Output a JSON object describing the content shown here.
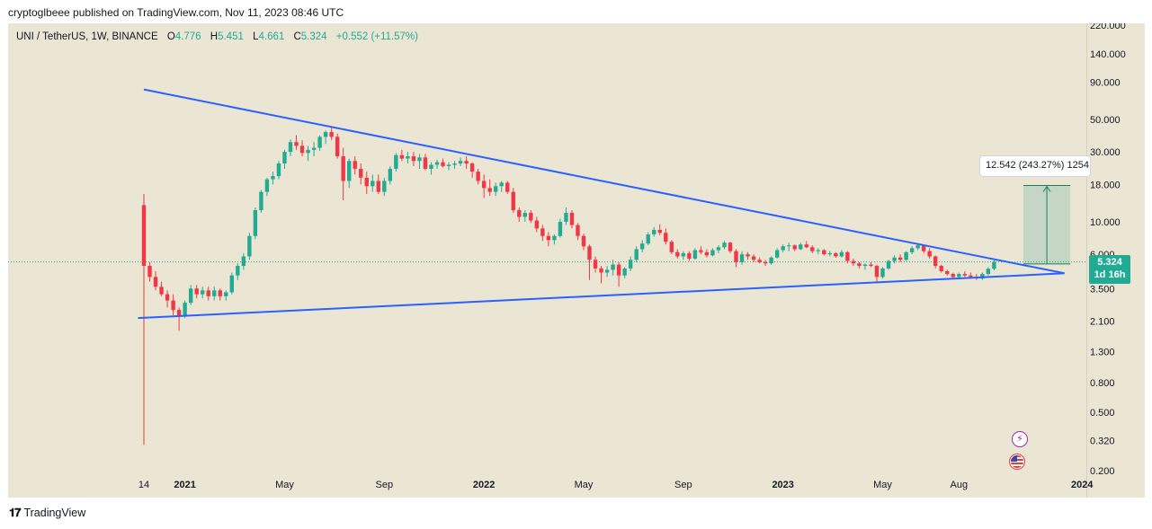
{
  "header": {
    "published_by": "cryptoglbeee published on TradingView.com, Nov 11, 2023 08:46 UTC"
  },
  "legend": {
    "symbol": "UNI / TetherUS, 1W, BINANCE",
    "open_label": "O",
    "open": "4.776",
    "high_label": "H",
    "high": "5.451",
    "low_label": "L",
    "low": "4.661",
    "close_label": "C",
    "close": "5.324",
    "change": "+0.552 (+11.57%)"
  },
  "price_badge": {
    "price": "5.324",
    "countdown": "1d 16h"
  },
  "measure_label": "12.542 (243.27%) 1254",
  "footer": {
    "logo": "𝟏𝟕",
    "brand": "TradingView"
  },
  "events": {
    "flash_icon": "lightning-icon",
    "us_flag_icon": "us-flag-icon"
  },
  "colors": {
    "background": "#ebe6d4",
    "up": "#22ab94",
    "down": "#f23645",
    "trendline": "#2962ff",
    "measure_fill": "#a5c9b8"
  },
  "chart_data": {
    "type": "candlestick",
    "scale": "log",
    "yticks": [
      0.2,
      0.32,
      0.5,
      0.8,
      1.3,
      2.1,
      3.5,
      6.0,
      10.0,
      18.0,
      30.0,
      50.0,
      90.0,
      140.0,
      220.0
    ],
    "ytick_labels": [
      "0.200",
      "0.320",
      "0.500",
      "0.800",
      "1.300",
      "2.100",
      "3.500",
      "6.000",
      "10.000",
      "18.000",
      "30.000",
      "50.000",
      "90.000",
      "140.000",
      "220.000"
    ],
    "xticks": [
      "14",
      "2021",
      "May",
      "Sep",
      "2022",
      "May",
      "Sep",
      "2023",
      "May",
      "Aug",
      "2024"
    ],
    "xtick_weeks": [
      0,
      7,
      24,
      41,
      58,
      75,
      92,
      109,
      126,
      139,
      160
    ],
    "candles": [
      [
        13.0,
        15.5,
        0.3,
        5.0
      ],
      [
        5.0,
        5.3,
        3.9,
        4.2
      ],
      [
        4.2,
        4.6,
        3.4,
        3.6
      ],
      [
        3.6,
        3.9,
        3.1,
        3.2
      ],
      [
        3.2,
        3.4,
        2.6,
        2.9
      ],
      [
        2.9,
        3.2,
        2.3,
        2.5
      ],
      [
        2.5,
        2.6,
        1.8,
        2.3
      ],
      [
        2.3,
        2.9,
        2.2,
        2.8
      ],
      [
        2.8,
        3.7,
        2.7,
        3.5
      ],
      [
        3.5,
        3.7,
        3.0,
        3.2
      ],
      [
        3.2,
        3.6,
        3.0,
        3.4
      ],
      [
        3.4,
        3.6,
        2.9,
        3.1
      ],
      [
        3.1,
        3.6,
        2.9,
        3.4
      ],
      [
        3.4,
        3.5,
        2.9,
        3.1
      ],
      [
        3.1,
        3.4,
        2.9,
        3.3
      ],
      [
        3.3,
        4.5,
        3.2,
        4.3
      ],
      [
        4.3,
        5.2,
        4.0,
        5.0
      ],
      [
        5.0,
        6.1,
        4.7,
        5.8
      ],
      [
        5.8,
        8.4,
        5.5,
        8.0
      ],
      [
        8.0,
        12.5,
        7.6,
        12.0
      ],
      [
        12.0,
        16.5,
        11.5,
        16.0
      ],
      [
        16.0,
        20.0,
        15.0,
        19.5
      ],
      [
        19.5,
        22.0,
        18.0,
        20.5
      ],
      [
        20.5,
        26.0,
        19.5,
        25.0
      ],
      [
        25.0,
        31.0,
        23.0,
        30.0
      ],
      [
        30.0,
        36.5,
        28.0,
        35.0
      ],
      [
        35.0,
        39.0,
        31.0,
        33.0
      ],
      [
        33.0,
        36.0,
        28.0,
        29.5
      ],
      [
        29.5,
        33.0,
        26.0,
        31.0
      ],
      [
        31.0,
        35.0,
        28.0,
        32.0
      ],
      [
        32.0,
        39.0,
        30.5,
        38.0
      ],
      [
        38.0,
        42.0,
        34.0,
        41.0
      ],
      [
        41.0,
        45.0,
        36.0,
        38.0
      ],
      [
        38.0,
        40.0,
        27.0,
        28.0
      ],
      [
        28.0,
        32.0,
        14.0,
        19.0
      ],
      [
        19.0,
        27.0,
        17.0,
        26.0
      ],
      [
        26.0,
        28.0,
        21.0,
        23.0
      ],
      [
        23.0,
        25.0,
        18.0,
        20.0
      ],
      [
        20.0,
        22.0,
        15.5,
        17.5
      ],
      [
        17.5,
        21.0,
        16.0,
        19.0
      ],
      [
        19.0,
        21.0,
        15.5,
        16.0
      ],
      [
        16.0,
        20.0,
        15.0,
        19.0
      ],
      [
        19.0,
        24.0,
        18.0,
        23.0
      ],
      [
        23.0,
        29.5,
        22.0,
        28.5
      ],
      [
        28.5,
        31.0,
        26.0,
        27.0
      ],
      [
        27.0,
        30.0,
        25.0,
        28.0
      ],
      [
        28.0,
        30.0,
        24.0,
        26.0
      ],
      [
        26.0,
        29.0,
        23.0,
        27.5
      ],
      [
        27.5,
        29.0,
        22.5,
        23.0
      ],
      [
        23.0,
        25.5,
        21.0,
        24.5
      ],
      [
        24.5,
        26.5,
        23.0,
        25.5
      ],
      [
        25.5,
        27.0,
        23.5,
        24.0
      ],
      [
        24.0,
        25.5,
        22.5,
        24.5
      ],
      [
        24.5,
        26.0,
        23.0,
        25.0
      ],
      [
        25.0,
        27.5,
        24.0,
        26.0
      ],
      [
        26.0,
        28.0,
        23.0,
        25.0
      ],
      [
        25.0,
        25.5,
        20.0,
        22.0
      ],
      [
        22.0,
        23.0,
        18.0,
        19.0
      ],
      [
        19.0,
        21.0,
        14.5,
        17.0
      ],
      [
        17.0,
        19.5,
        15.0,
        16.0
      ],
      [
        16.0,
        18.5,
        15.0,
        17.5
      ],
      [
        17.5,
        19.0,
        16.0,
        18.5
      ],
      [
        18.5,
        19.0,
        15.5,
        16.0
      ],
      [
        16.0,
        17.0,
        11.5,
        12.0
      ],
      [
        12.0,
        12.5,
        10.0,
        10.8
      ],
      [
        10.8,
        12.0,
        10.0,
        11.5
      ],
      [
        11.5,
        12.0,
        9.8,
        10.2
      ],
      [
        10.2,
        10.8,
        8.5,
        9.0
      ],
      [
        9.0,
        9.5,
        7.4,
        8.0
      ],
      [
        8.0,
        8.5,
        6.8,
        7.5
      ],
      [
        7.5,
        8.2,
        7.0,
        8.0
      ],
      [
        8.0,
        10.5,
        7.8,
        10.0
      ],
      [
        10.0,
        12.5,
        9.5,
        11.5
      ],
      [
        11.5,
        12.0,
        9.0,
        9.5
      ],
      [
        9.5,
        9.8,
        7.5,
        8.0
      ],
      [
        8.0,
        8.3,
        6.4,
        6.8
      ],
      [
        6.8,
        7.0,
        4.0,
        5.5
      ],
      [
        5.5,
        5.8,
        4.5,
        4.8
      ],
      [
        4.8,
        5.0,
        3.8,
        4.5
      ],
      [
        4.5,
        5.0,
        4.2,
        4.7
      ],
      [
        4.7,
        5.5,
        4.3,
        5.1
      ],
      [
        5.1,
        5.3,
        3.6,
        4.3
      ],
      [
        4.3,
        4.9,
        4.1,
        4.8
      ],
      [
        4.8,
        5.8,
        4.6,
        5.5
      ],
      [
        5.5,
        6.8,
        5.3,
        6.5
      ],
      [
        6.5,
        7.5,
        6.2,
        7.1
      ],
      [
        7.1,
        8.5,
        6.9,
        8.2
      ],
      [
        8.2,
        9.2,
        7.9,
        8.8
      ],
      [
        8.8,
        9.6,
        8.1,
        8.4
      ],
      [
        8.4,
        9.0,
        7.0,
        7.3
      ],
      [
        7.3,
        7.5,
        6.0,
        6.2
      ],
      [
        6.2,
        6.5,
        5.6,
        5.8
      ],
      [
        5.8,
        6.3,
        5.5,
        6.1
      ],
      [
        6.1,
        6.3,
        5.4,
        5.6
      ],
      [
        5.6,
        6.6,
        5.5,
        6.4
      ],
      [
        6.4,
        6.8,
        6.0,
        6.2
      ],
      [
        6.2,
        6.5,
        5.7,
        5.9
      ],
      [
        5.9,
        6.6,
        5.8,
        6.4
      ],
      [
        6.4,
        6.9,
        6.1,
        6.7
      ],
      [
        6.7,
        7.4,
        6.5,
        7.2
      ],
      [
        7.2,
        7.3,
        6.1,
        6.3
      ],
      [
        6.3,
        6.5,
        4.9,
        5.3
      ],
      [
        5.3,
        6.3,
        5.1,
        6.0
      ],
      [
        6.0,
        6.2,
        5.5,
        5.8
      ],
      [
        5.8,
        6.0,
        5.3,
        5.5
      ],
      [
        5.5,
        5.7,
        5.2,
        5.3
      ],
      [
        5.3,
        5.5,
        5.0,
        5.2
      ],
      [
        5.2,
        5.8,
        5.1,
        5.7
      ],
      [
        5.7,
        6.6,
        5.6,
        6.4
      ],
      [
        6.4,
        7.0,
        6.2,
        6.8
      ],
      [
        6.8,
        7.2,
        6.3,
        6.9
      ],
      [
        6.9,
        7.0,
        6.3,
        6.5
      ],
      [
        6.5,
        7.2,
        6.4,
        7.0
      ],
      [
        7.0,
        7.4,
        6.6,
        6.7
      ],
      [
        6.7,
        6.9,
        6.1,
        6.3
      ],
      [
        6.3,
        6.6,
        6.0,
        6.4
      ],
      [
        6.4,
        6.5,
        5.9,
        6.0
      ],
      [
        6.0,
        6.3,
        5.8,
        6.1
      ],
      [
        6.1,
        6.2,
        5.7,
        5.8
      ],
      [
        5.8,
        6.4,
        5.7,
        6.2
      ],
      [
        6.2,
        6.3,
        5.2,
        5.4
      ],
      [
        5.4,
        5.6,
        5.0,
        5.2
      ],
      [
        5.2,
        5.3,
        4.8,
        5.0
      ],
      [
        5.0,
        5.2,
        4.7,
        5.1
      ],
      [
        5.1,
        5.3,
        4.9,
        5.0
      ],
      [
        5.0,
        5.1,
        3.8,
        4.2
      ],
      [
        4.2,
        4.9,
        4.1,
        4.8
      ],
      [
        4.8,
        5.5,
        4.7,
        5.4
      ],
      [
        5.4,
        5.9,
        5.2,
        5.7
      ],
      [
        5.7,
        6.0,
        5.3,
        5.5
      ],
      [
        5.5,
        6.3,
        5.4,
        6.2
      ],
      [
        6.2,
        6.8,
        6.0,
        6.6
      ],
      [
        6.6,
        7.1,
        6.4,
        6.9
      ],
      [
        6.9,
        7.0,
        6.1,
        6.3
      ],
      [
        6.3,
        6.6,
        5.6,
        5.8
      ],
      [
        5.8,
        5.9,
        4.8,
        5.0
      ],
      [
        5.0,
        5.1,
        4.5,
        4.6
      ],
      [
        4.6,
        4.7,
        4.3,
        4.4
      ],
      [
        4.4,
        4.5,
        4.1,
        4.2
      ],
      [
        4.2,
        4.5,
        4.1,
        4.4
      ],
      [
        4.4,
        4.6,
        4.2,
        4.3
      ],
      [
        4.3,
        4.5,
        4.1,
        4.2
      ],
      [
        4.2,
        4.4,
        4.0,
        4.1
      ],
      [
        4.1,
        4.5,
        4.0,
        4.4
      ],
      [
        4.4,
        4.9,
        4.3,
        4.78
      ],
      [
        4.776,
        5.451,
        4.661,
        5.324
      ]
    ],
    "trendlines": [
      {
        "name": "upper",
        "from_week": 0,
        "from_value": 80,
        "to_week": 157,
        "to_value": 4.45
      },
      {
        "name": "lower",
        "from_week": -1,
        "from_value": 2.2,
        "to_week": 157,
        "to_value": 4.45
      }
    ],
    "measure": {
      "from_week": 150,
      "to_week": 158,
      "from_value": 5.15,
      "to_value": 17.7,
      "label": "12.542 (243.27%) 1254"
    },
    "last_price": 5.324
  }
}
